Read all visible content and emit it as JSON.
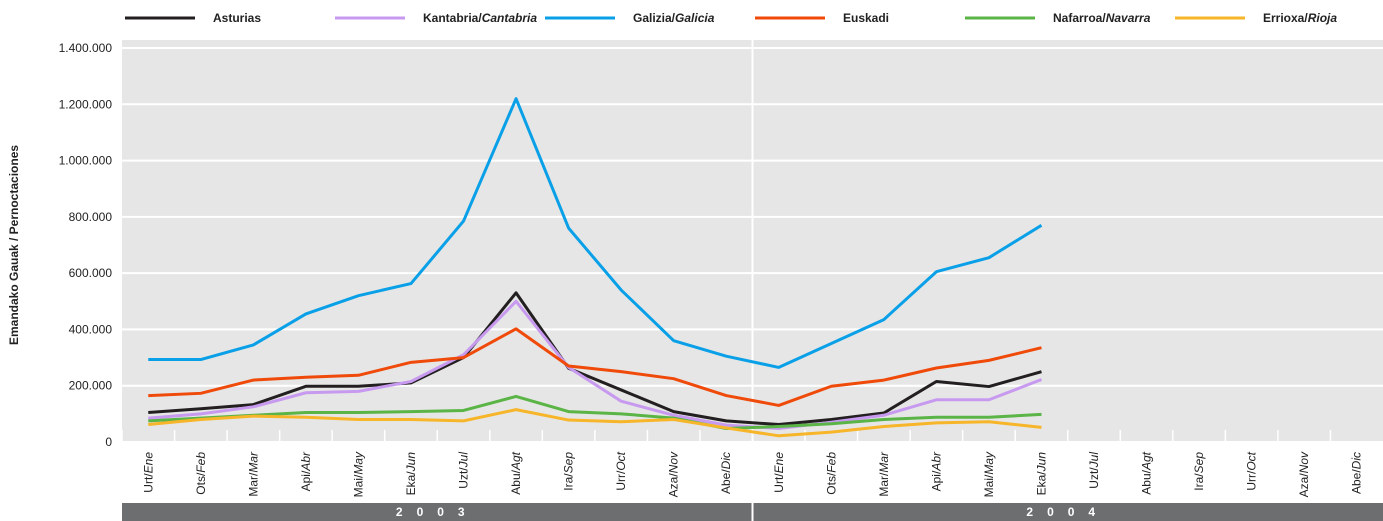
{
  "chart_data": {
    "type": "line",
    "y_label": "Emandako Gauak / Pernoctaciones",
    "categories": [
      "Urt/Ene",
      "Ots/Feb",
      "Mar/Mar",
      "Api/Abr",
      "Mai/May",
      "Eka/Jun",
      "Uzt/Jul",
      "Abu/Agt",
      "Ira/Sep",
      "Urr/Oct",
      "Aza/Nov",
      "Abe/Dic",
      "Urt/Ene",
      "Ots/Feb",
      "Mar/Mar",
      "Api/Abr",
      "Mai/May",
      "Eka/Jun",
      "Uzt/Jul",
      "Abu/Agt",
      "Ira/Sep",
      "Urr/Oct",
      "Aza/Nov",
      "Abe/Dic"
    ],
    "years": [
      "2003",
      "2004"
    ],
    "ylim": [
      0,
      1400000
    ],
    "yticks": [
      {
        "value": 0,
        "label": "0"
      },
      {
        "value": 200000,
        "label": "200.000"
      },
      {
        "value": 400000,
        "label": "400.000"
      },
      {
        "value": 600000,
        "label": "600.000"
      },
      {
        "value": 800000,
        "label": "800.000"
      },
      {
        "value": 1000000,
        "label": "1.000.000"
      },
      {
        "value": 1200000,
        "label": "1.200.000"
      },
      {
        "value": 1400000,
        "label": "1.400.000"
      }
    ],
    "grid": true,
    "series": [
      {
        "name": "Asturias",
        "color": "#231f20",
        "values": [
          105000,
          118000,
          133000,
          198000,
          198000,
          210000,
          300000,
          530000,
          262000,
          185000,
          108000,
          75000,
          62000,
          80000,
          103000,
          215000,
          197000,
          250000,
          null,
          null,
          null,
          null,
          null,
          null
        ]
      },
      {
        "name": "Kantabria/Cantabria",
        "color": "#c79af0",
        "values": [
          85000,
          100000,
          125000,
          175000,
          180000,
          215000,
          310000,
          500000,
          265000,
          145000,
          95000,
          60000,
          48000,
          70000,
          95000,
          150000,
          150000,
          222000,
          null,
          null,
          null,
          null,
          null,
          null
        ]
      },
      {
        "name": "Galizia/Galicia",
        "color": "#0aa0e8",
        "values": [
          293000,
          293000,
          345000,
          455000,
          520000,
          563000,
          785000,
          1220000,
          760000,
          540000,
          360000,
          305000,
          265000,
          350000,
          435000,
          605000,
          655000,
          770000,
          null,
          null,
          null,
          null,
          null,
          null
        ]
      },
      {
        "name": "Euskadi",
        "color": "#f04a0a",
        "values": [
          165000,
          173000,
          220000,
          230000,
          237000,
          283000,
          300000,
          402000,
          270000,
          250000,
          225000,
          165000,
          130000,
          198000,
          220000,
          263000,
          290000,
          335000,
          null,
          null,
          null,
          null,
          null,
          null
        ]
      },
      {
        "name": "Nafarroa/Navarra",
        "color": "#5ab446",
        "values": [
          75000,
          85000,
          95000,
          105000,
          105000,
          108000,
          112000,
          162000,
          108000,
          100000,
          85000,
          48000,
          55000,
          65000,
          80000,
          88000,
          88000,
          98000,
          null,
          null,
          null,
          null,
          null,
          null
        ]
      },
      {
        "name": "Errioxa/Rioja",
        "color": "#f7b52a",
        "values": [
          62000,
          80000,
          92000,
          88000,
          80000,
          80000,
          75000,
          115000,
          78000,
          72000,
          80000,
          50000,
          22000,
          35000,
          55000,
          68000,
          72000,
          52000,
          null,
          null,
          null,
          null,
          null,
          null
        ]
      }
    ]
  }
}
